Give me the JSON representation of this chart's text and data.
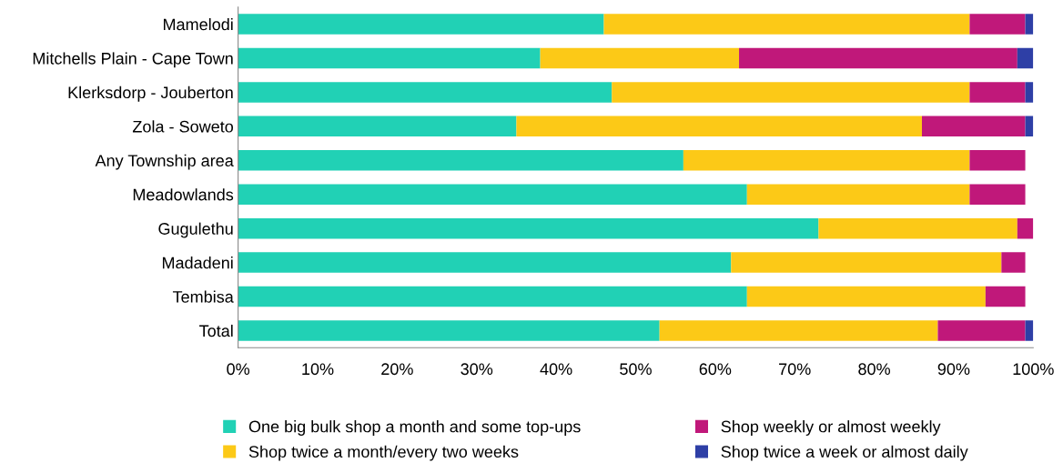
{
  "chart_data": {
    "type": "bar",
    "orientation": "horizontal",
    "stacked": true,
    "categories": [
      "Mamelodi",
      "Mitchells Plain - Cape Town",
      "Klerksdorp - Jouberton",
      "Zola - Soweto",
      "Any Township area",
      "Meadowlands",
      "Gugulethu",
      "Madadeni",
      "Tembisa",
      "Total"
    ],
    "series": [
      {
        "name": "One big bulk shop a month and some top-ups",
        "color": "#21d1b5",
        "values": [
          46,
          38,
          47,
          35,
          56,
          64,
          73,
          62,
          64,
          53
        ]
      },
      {
        "name": "Shop twice a month/every two weeks",
        "color": "#fcc917",
        "values": [
          46,
          25,
          45,
          51,
          36,
          28,
          25,
          34,
          30,
          35
        ]
      },
      {
        "name": "Shop weekly or almost weekly",
        "color": "#c0187a",
        "values": [
          7,
          35,
          7,
          13,
          7,
          7,
          2,
          3,
          5,
          11
        ]
      },
      {
        "name": "Shop twice a week or almost daily",
        "color": "#2e3fa6",
        "values": [
          1,
          2,
          1,
          1,
          0,
          0,
          0,
          0,
          0,
          1
        ]
      }
    ],
    "xlim": [
      0,
      100
    ],
    "xticks": [
      {
        "value": 0,
        "label": "0%"
      },
      {
        "value": 10,
        "label": "10%"
      },
      {
        "value": 20,
        "label": "20%"
      },
      {
        "value": 30,
        "label": "30%"
      },
      {
        "value": 40,
        "label": "40%"
      },
      {
        "value": 50,
        "label": "50%"
      },
      {
        "value": 60,
        "label": "60%"
      },
      {
        "value": 70,
        "label": "70%"
      },
      {
        "value": 80,
        "label": "80%"
      },
      {
        "value": 90,
        "label": "90%"
      },
      {
        "value": 100,
        "label": "100%"
      }
    ],
    "grid": false,
    "legend": "bottom"
  }
}
